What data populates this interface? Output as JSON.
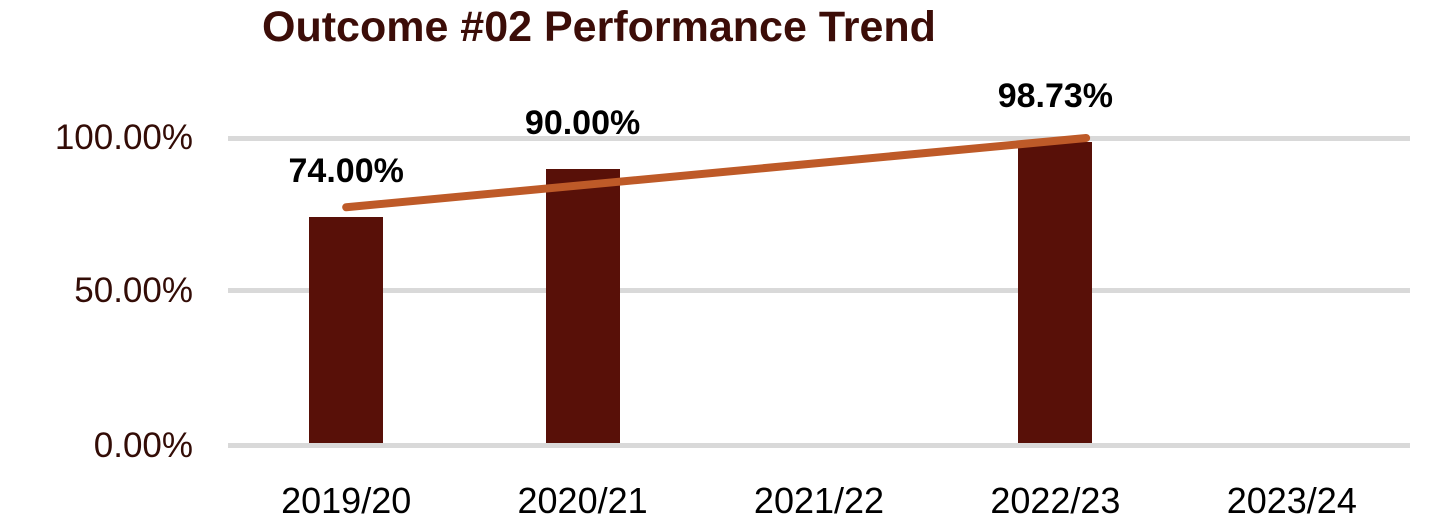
{
  "chart_data": {
    "type": "bar",
    "title": "Outcome #02 Performance Trend",
    "title_color": "#3C0D08",
    "categories": [
      "2019/20",
      "2020/21",
      "2021/22",
      "2022/23",
      "2023/24"
    ],
    "series": [
      {
        "name": "performance",
        "type": "bar",
        "color": "#581008",
        "values": [
          74.0,
          90.0,
          null,
          98.73,
          null
        ],
        "data_labels": [
          "74.00%",
          "90.00%",
          null,
          "98.73%",
          null
        ]
      },
      {
        "name": "trend",
        "type": "line",
        "color": "#BE5A28",
        "from": {
          "category_index": 0,
          "value": 77.3
        },
        "to": {
          "category_index": 3.13,
          "value": 100.0
        }
      }
    ],
    "y_axis": {
      "range": [
        0,
        100
      ],
      "ticks": [
        {
          "label": "0.00%",
          "value": 0
        },
        {
          "label": "50.00%",
          "value": 50
        },
        {
          "label": "100.00%",
          "value": 100
        }
      ],
      "label_color": "#330C06",
      "grid": true,
      "gridline_color": "#D9D9D9"
    },
    "x_axis": {
      "label_color": "#000000"
    },
    "legend": "none"
  }
}
